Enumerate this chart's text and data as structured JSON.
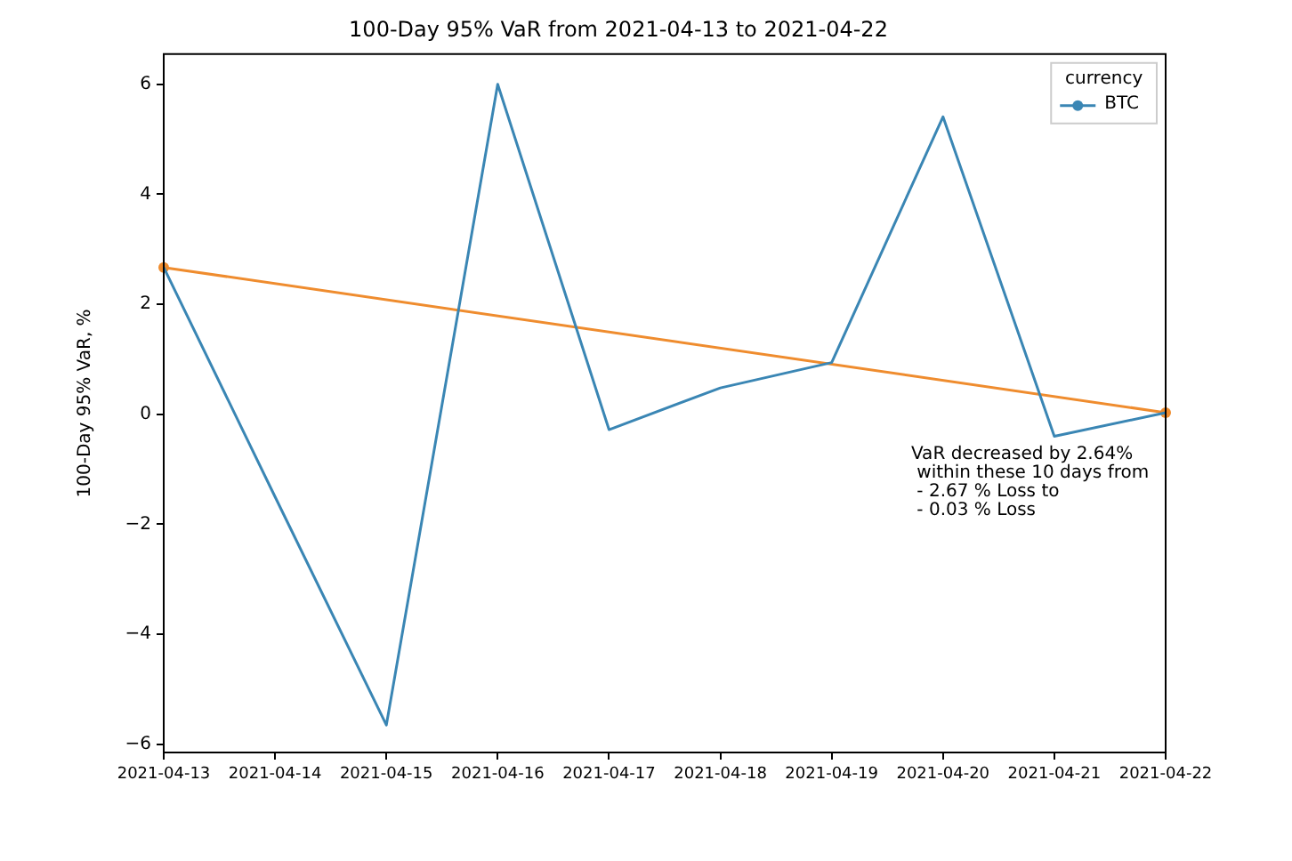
{
  "chart_data": {
    "type": "line",
    "title": "100-Day 95% VaR from 2021-04-13 to 2021-04-22",
    "ylabel": "100-Day 95% VaR, %",
    "legend_title": "currency",
    "categories": [
      "2021-04-13",
      "2021-04-14",
      "2021-04-15",
      "2021-04-16",
      "2021-04-17",
      "2021-04-18",
      "2021-04-19",
      "2021-04-20",
      "2021-04-21",
      "2021-04-22"
    ],
    "series": [
      {
        "name": "BTC",
        "color": "#3a86b4",
        "marker": "none",
        "values": [
          2.67,
          -1.5,
          -5.65,
          6.0,
          -0.28,
          0.48,
          0.94,
          5.41,
          -0.4,
          0.03
        ]
      },
      {
        "color": "#ef8c2e",
        "marker": "circle",
        "values": [
          2.67,
          null,
          null,
          null,
          null,
          null,
          null,
          null,
          null,
          0.03
        ]
      }
    ],
    "ylim": [
      -6.15,
      6.55
    ],
    "yticks": [
      -6,
      -4,
      -2,
      0,
      2,
      4,
      6
    ],
    "grid": false,
    "legend": "top right",
    "annotations": [
      "VaR decreased by 2.64%\n within these 10 days from\n - 2.67 % Loss to\n - 0.03 % Loss"
    ]
  }
}
